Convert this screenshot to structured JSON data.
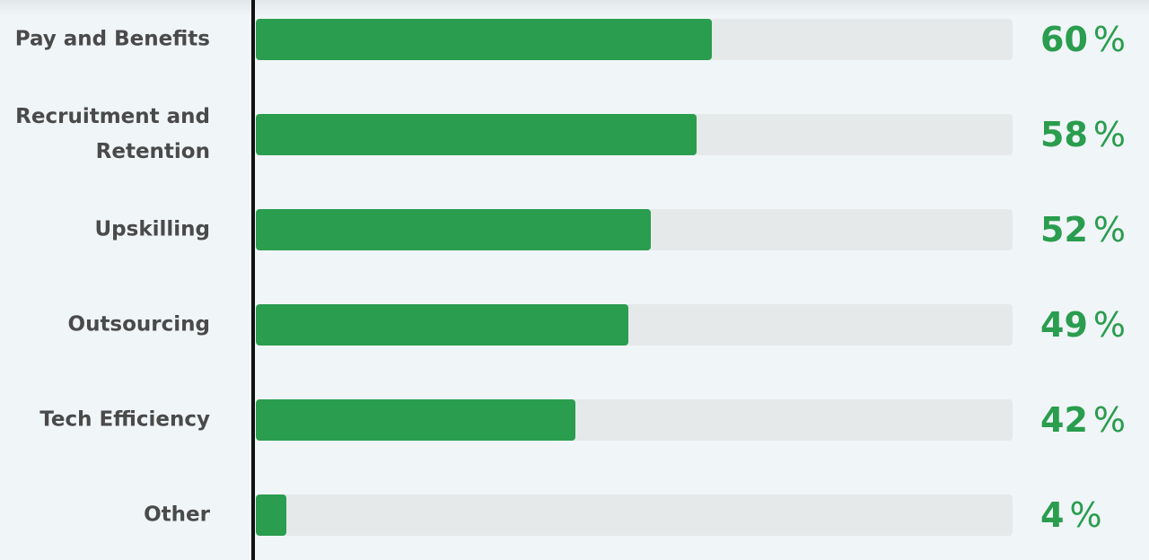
{
  "chart_data": {
    "type": "bar",
    "orientation": "horizontal",
    "categories": [
      "Pay and Benefits",
      "Recruitment and Retention",
      "Upskilling",
      "Outsourcing",
      "Tech Efficiency",
      "Other"
    ],
    "values": [
      60,
      58,
      52,
      49,
      42,
      4
    ],
    "value_labels": [
      "60",
      "58",
      "52",
      "49",
      "42",
      "4"
    ],
    "unit": "%",
    "xlim": [
      0,
      100
    ],
    "grid": false,
    "legend": "none",
    "title": "",
    "xlabel": "",
    "ylabel": ""
  },
  "colors": {
    "bar": "#2a9d4e",
    "track": "#e5e9ea",
    "label": "#4a4a4a",
    "value": "#2a9d4e",
    "background": "#f0f5f8"
  }
}
